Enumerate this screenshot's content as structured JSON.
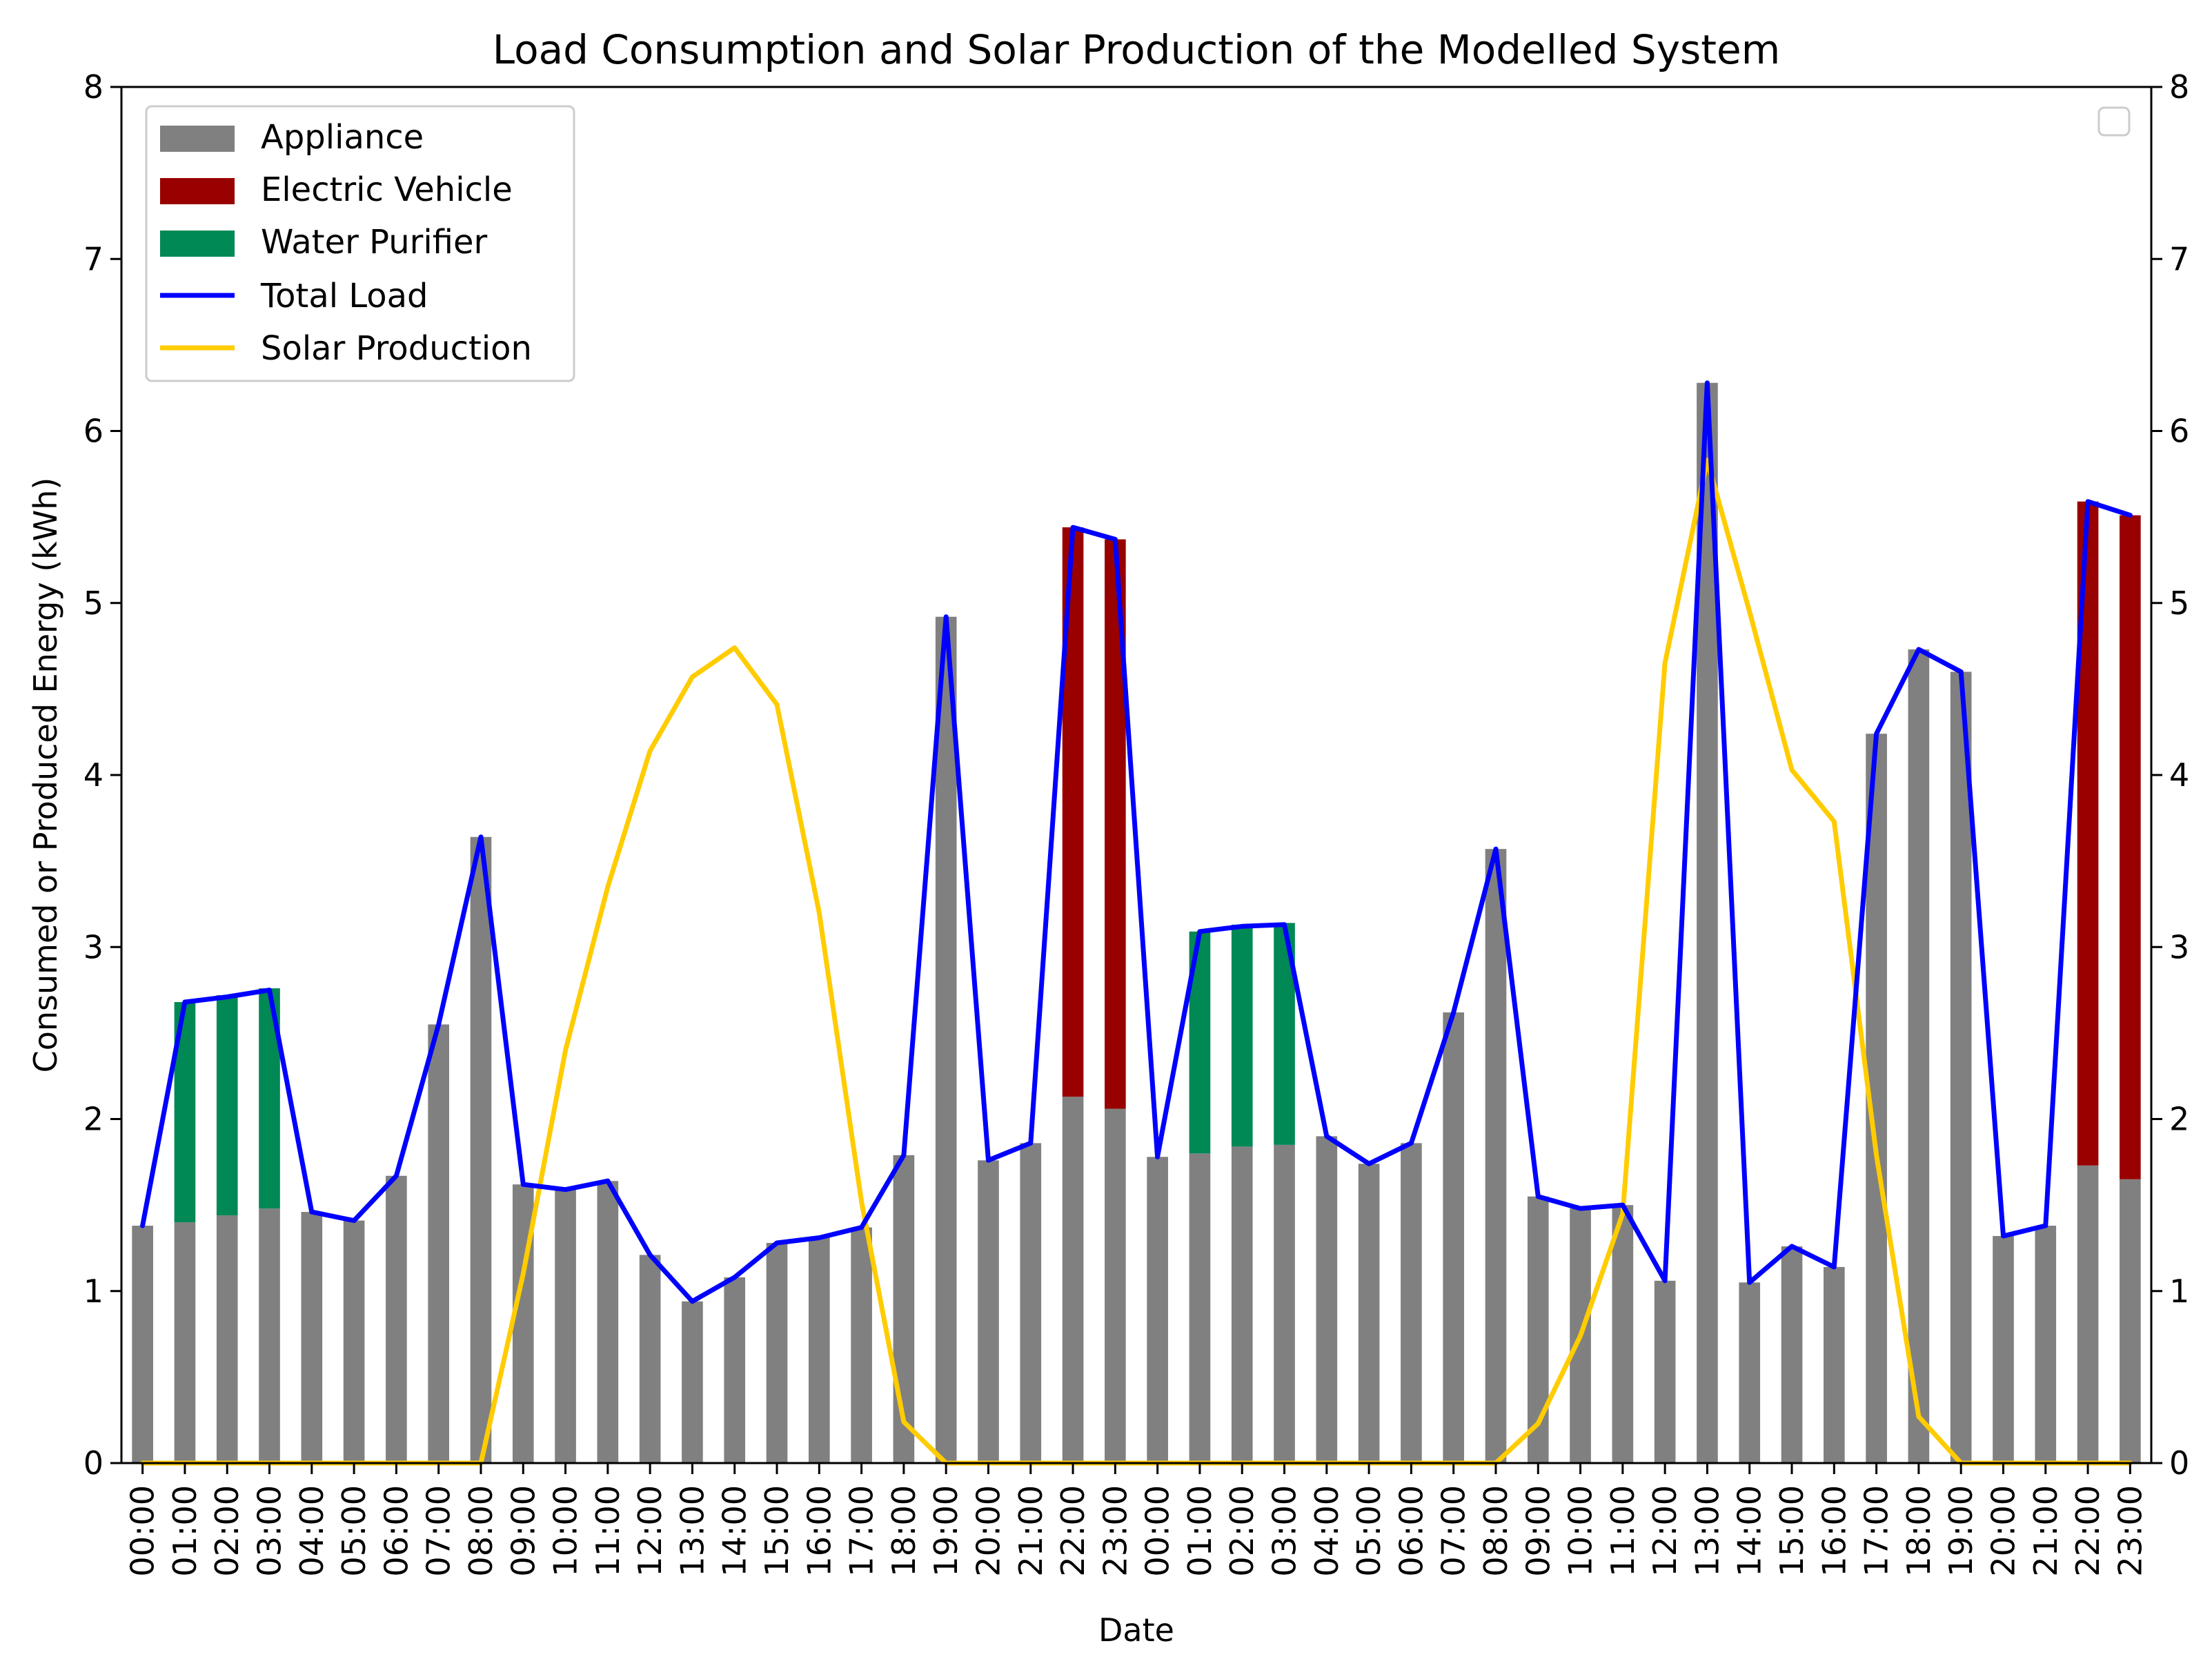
{
  "chart_data": {
    "type": "bar",
    "stacked": true,
    "title": "Load Consumption and Solar Production of the Modelled System",
    "xlabel": "Date",
    "ylabel": "Consumed or Produced Energy (kWh)",
    "ylim": [
      0,
      8
    ],
    "yticks": [
      "0",
      "1",
      "2",
      "3",
      "4",
      "5",
      "6",
      "7",
      "8"
    ],
    "right_axis": {
      "ylim": [
        0,
        8
      ],
      "yticks": [
        "0",
        "1",
        "2",
        "3",
        "4",
        "5",
        "6",
        "7",
        "8"
      ]
    },
    "legend_placement": "top-left",
    "categories": [
      "00:00",
      "01:00",
      "02:00",
      "03:00",
      "04:00",
      "05:00",
      "06:00",
      "07:00",
      "08:00",
      "09:00",
      "10:00",
      "11:00",
      "12:00",
      "13:00",
      "14:00",
      "15:00",
      "16:00",
      "17:00",
      "18:00",
      "19:00",
      "20:00",
      "21:00",
      "22:00",
      "23:00",
      "00:00",
      "01:00",
      "02:00",
      "03:00",
      "04:00",
      "05:00",
      "06:00",
      "07:00",
      "08:00",
      "09:00",
      "10:00",
      "11:00",
      "12:00",
      "13:00",
      "14:00",
      "15:00",
      "16:00",
      "17:00",
      "18:00",
      "19:00",
      "20:00",
      "21:00",
      "22:00",
      "23:00"
    ],
    "series": [
      {
        "name": "Appliance",
        "kind": "bar",
        "color": "#808080",
        "values": [
          1.38,
          1.4,
          1.44,
          1.48,
          1.46,
          1.41,
          1.67,
          2.55,
          3.64,
          1.62,
          1.59,
          1.64,
          1.21,
          0.94,
          1.08,
          1.28,
          1.31,
          1.37,
          1.79,
          4.92,
          1.76,
          1.86,
          2.13,
          2.06,
          1.78,
          1.8,
          1.84,
          1.85,
          1.9,
          1.74,
          1.86,
          2.62,
          3.57,
          1.55,
          1.48,
          1.5,
          1.06,
          6.28,
          1.05,
          1.26,
          1.14,
          4.24,
          4.73,
          4.6,
          1.32,
          1.38,
          1.73,
          1.65
        ]
      },
      {
        "name": "Electric Vehicle",
        "kind": "bar",
        "color": "#990000",
        "values": [
          0,
          0,
          0,
          0,
          0,
          0,
          0,
          0,
          0,
          0,
          0,
          0,
          0,
          0,
          0,
          0,
          0,
          0,
          0,
          0,
          0,
          0,
          3.31,
          3.31,
          0,
          0,
          0,
          0,
          0,
          0,
          0,
          0,
          0,
          0,
          0,
          0,
          0,
          0,
          0,
          0,
          0,
          0,
          0,
          0,
          0,
          0,
          3.86,
          3.86
        ]
      },
      {
        "name": "Water Purifier",
        "kind": "bar",
        "color": "#008855",
        "values": [
          0,
          1.28,
          1.28,
          1.28,
          0,
          0,
          0,
          0,
          0,
          0,
          0,
          0,
          0,
          0,
          0,
          0,
          0,
          0,
          0,
          0,
          0,
          0,
          0,
          0,
          0,
          1.29,
          1.29,
          1.29,
          0,
          0,
          0,
          0,
          0,
          0,
          0,
          0,
          0,
          0,
          0,
          0,
          0,
          0,
          0,
          0,
          0,
          0,
          0,
          0
        ]
      },
      {
        "name": "Total Load",
        "kind": "line",
        "color": "#0000ff",
        "values": [
          1.38,
          2.68,
          2.71,
          2.75,
          1.46,
          1.41,
          1.67,
          2.55,
          3.64,
          1.62,
          1.59,
          1.64,
          1.21,
          0.94,
          1.08,
          1.28,
          1.31,
          1.37,
          1.79,
          4.92,
          1.76,
          1.86,
          5.44,
          5.37,
          1.78,
          3.09,
          3.12,
          3.13,
          1.9,
          1.74,
          1.86,
          2.62,
          3.57,
          1.55,
          1.48,
          1.5,
          1.06,
          6.28,
          1.05,
          1.26,
          1.14,
          4.24,
          4.73,
          4.6,
          1.32,
          1.38,
          5.59,
          5.51
        ]
      },
      {
        "name": "Solar Production",
        "kind": "line",
        "color": "#ffcc00",
        "values": [
          0,
          0,
          0,
          0,
          0,
          0,
          0,
          0,
          0,
          1.1,
          2.4,
          3.35,
          4.14,
          4.57,
          4.74,
          4.41,
          3.2,
          1.52,
          0.24,
          0,
          0,
          0,
          0,
          0,
          0,
          0,
          0,
          0,
          0,
          0,
          0,
          0,
          0,
          0.23,
          0.74,
          1.45,
          4.65,
          5.83,
          4.95,
          4.03,
          3.73,
          1.79,
          0.27,
          0,
          0,
          0,
          0,
          0
        ]
      }
    ]
  }
}
